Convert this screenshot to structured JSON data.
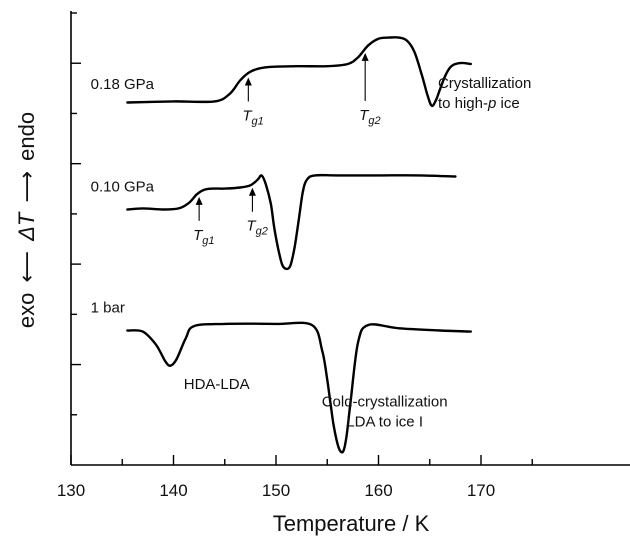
{
  "chart_data": {
    "type": "line",
    "xlabel": "Temperature / K",
    "ylabel": {
      "left": "exo",
      "symbol": "ΔT",
      "right": "endo"
    },
    "xlim": [
      130,
      175
    ],
    "x_ticks": [
      130,
      140,
      150,
      160,
      170
    ],
    "y_tick_count": 9,
    "series": [
      {
        "name": "0.18 GPa",
        "x": [
          135.5,
          140,
          144,
          145.5,
          146.5,
          147.5,
          149,
          152,
          155,
          157,
          158,
          159,
          160,
          161,
          162,
          162.8,
          163.5,
          164.2,
          164.8,
          165.2,
          165.6,
          166,
          166.5,
          167,
          167.5,
          168.2,
          169
        ],
        "y": [
          0.5,
          0.6,
          0.6,
          1.3,
          2.5,
          3.3,
          3.7,
          3.8,
          3.8,
          4.0,
          4.6,
          5.7,
          6.3,
          6.4,
          6.4,
          6.1,
          5.1,
          3.1,
          1.1,
          0.2,
          0.7,
          1.7,
          2.9,
          3.7,
          4.0,
          4.1,
          4.0
        ],
        "label_x": 132.5,
        "label_y": 2.2
      },
      {
        "name": "0.10 GPa",
        "x": [
          135.5,
          137,
          139,
          140.5,
          141.5,
          142.3,
          143,
          143.8,
          145,
          146.5,
          147.5,
          148.2,
          148.6,
          149,
          149.5,
          149.8,
          150.2,
          150.6,
          151,
          151.4,
          151.8,
          152.2,
          152.6,
          153,
          153.8,
          156,
          160,
          164,
          167.5
        ],
        "y": [
          0.5,
          0.6,
          0.5,
          0.6,
          1.1,
          1.9,
          2.3,
          2.4,
          2.4,
          2.5,
          2.7,
          3.2,
          3.6,
          2.8,
          1.0,
          -1.0,
          -3.0,
          -4.5,
          -4.9,
          -4.6,
          -3.0,
          -0.6,
          2.0,
          3.2,
          3.6,
          3.6,
          3.6,
          3.6,
          3.5
        ],
        "label_x": 132.5,
        "label_y": 2.6
      },
      {
        "name": "1 bar",
        "x": [
          135.5,
          137,
          138.3,
          139.2,
          139.7,
          140.3,
          141.2,
          142,
          145,
          150,
          153.5,
          154.5,
          155,
          155.3,
          155.6,
          156,
          156.3,
          156.6,
          156.9,
          157.3,
          158,
          159,
          162,
          166,
          169
        ],
        "y": [
          -0.5,
          -0.6,
          -1.8,
          -3.3,
          -3.7,
          -3.1,
          -1.2,
          -0.1,
          0.1,
          0.1,
          0.0,
          -2.3,
          -5.0,
          -7.0,
          -9.0,
          -10.8,
          -11.5,
          -11.4,
          -10.0,
          -6.8,
          -1.6,
          0.0,
          -0.3,
          -0.5,
          -0.6
        ],
        "label_x": 132.5,
        "label_y": 1.6
      }
    ],
    "annotations": [
      {
        "type": "arrow",
        "series": "0.18 GPa",
        "label": "T",
        "sub": "g1",
        "x": 147.3
      },
      {
        "type": "arrow",
        "series": "0.18 GPa",
        "label": "T",
        "sub": "g2",
        "x": 158.7
      },
      {
        "type": "arrow",
        "series": "0.10 GPa",
        "label": "T",
        "sub": "g1",
        "x": 142.5
      },
      {
        "type": "arrow",
        "series": "0.10 GPa",
        "label": "T",
        "sub": "g2",
        "x": 147.7
      },
      {
        "type": "text",
        "series": "0.18 GPa",
        "lines": [
          "Crystallization",
          "to high-p ice"
        ],
        "x": 165.8,
        "y": 1.8
      },
      {
        "type": "text",
        "series": "1 bar",
        "lines": [
          "HDA-LDA"
        ],
        "x": 141,
        "y": -5.8
      },
      {
        "type": "text",
        "series": "1 bar",
        "lines": [
          "Cold-crystallization",
          "LDA to ice I"
        ],
        "x": 160.6,
        "y": -7.4
      }
    ]
  }
}
